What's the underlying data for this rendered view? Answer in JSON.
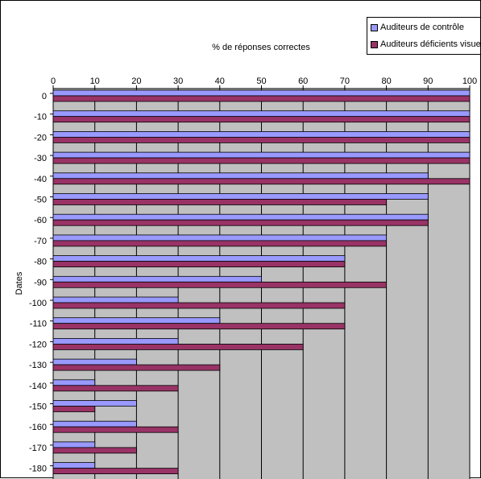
{
  "chart_data": {
    "type": "bar",
    "orientation": "horizontal",
    "xlabel": "% de réponses correctes",
    "ylabel": "Dates",
    "xlim": [
      0,
      100
    ],
    "x_ticks": [
      0,
      10,
      20,
      30,
      40,
      50,
      60,
      70,
      80,
      90,
      100
    ],
    "x_axis_position": "top",
    "grid": "vertical",
    "plot_background": "#C0C0C0",
    "legend_position": "top-right",
    "categories": [
      "0",
      "-10",
      "-20",
      "-30",
      "-40",
      "-50",
      "-60",
      "-70",
      "-80",
      "-90",
      "-100",
      "-110",
      "-120",
      "-130",
      "-140",
      "-150",
      "-160",
      "-170",
      "-180"
    ],
    "series": [
      {
        "name": "Auditeurs de contrôle",
        "color": "#9999FF",
        "values": [
          100,
          100,
          100,
          100,
          90,
          90,
          90,
          80,
          70,
          50,
          30,
          40,
          30,
          20,
          10,
          20,
          20,
          10,
          10
        ]
      },
      {
        "name": "Auditeurs déficients visuels",
        "color": "#993366",
        "values": [
          100,
          100,
          100,
          100,
          100,
          80,
          90,
          80,
          70,
          80,
          70,
          70,
          60,
          40,
          30,
          10,
          30,
          20,
          30
        ]
      }
    ]
  }
}
